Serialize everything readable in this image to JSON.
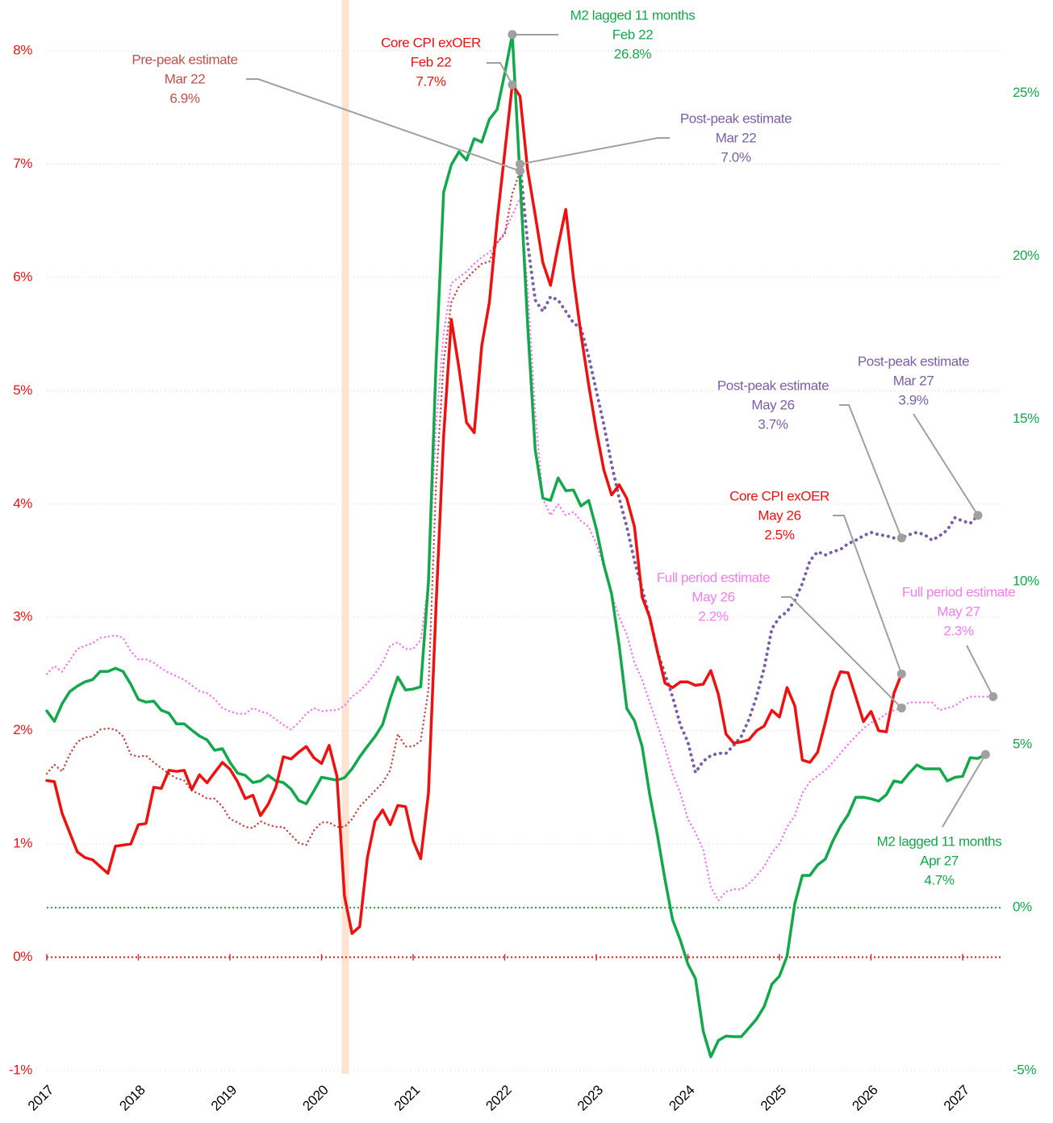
{
  "chart_data": {
    "type": "line",
    "x": [
      2017,
      2017.083,
      2017.167,
      2017.25,
      2017.333,
      2017.417,
      2017.5,
      2017.583,
      2017.667,
      2017.75,
      2017.833,
      2017.917,
      2018,
      2018.083,
      2018.167,
      2018.25,
      2018.333,
      2018.417,
      2018.5,
      2018.583,
      2018.667,
      2018.75,
      2018.833,
      2018.917,
      2019,
      2019.083,
      2019.167,
      2019.25,
      2019.333,
      2019.417,
      2019.5,
      2019.583,
      2019.667,
      2019.75,
      2019.833,
      2019.917,
      2020,
      2020.083,
      2020.167,
      2020.25,
      2020.333,
      2020.417,
      2020.5,
      2020.583,
      2020.667,
      2020.75,
      2020.833,
      2020.917,
      2021,
      2021.083,
      2021.167,
      2021.25,
      2021.333,
      2021.417,
      2021.5,
      2021.583,
      2021.667,
      2021.75,
      2021.833,
      2021.917,
      2022,
      2022.083,
      2022.167,
      2022.25,
      2022.333,
      2022.417,
      2022.5,
      2022.583,
      2022.667,
      2022.75,
      2022.833,
      2022.917,
      2023,
      2023.083,
      2023.167,
      2023.25,
      2023.333,
      2023.417,
      2023.5,
      2023.583,
      2023.667,
      2023.75,
      2023.833,
      2023.917,
      2024,
      2024.083,
      2024.167,
      2024.25,
      2024.333,
      2024.417,
      2024.5,
      2024.583,
      2024.667,
      2024.75,
      2024.833,
      2024.917,
      2025,
      2025.083,
      2025.167,
      2025.25,
      2025.333,
      2025.417,
      2025.5,
      2025.583,
      2025.667,
      2025.75,
      2025.833,
      2025.917,
      2026,
      2026.083,
      2026.167,
      2026.25,
      2026.333,
      2026.417,
      2026.5,
      2026.583,
      2026.667,
      2026.75,
      2026.833,
      2026.917,
      2027,
      2027.083,
      2027.167,
      2027.25,
      2027.333
    ],
    "series": [
      {
        "name": "Core CPI exOER",
        "color": "#ee1111",
        "style": "solid",
        "axis": "y",
        "values": [
          1.56,
          1.55,
          1.27,
          1.1,
          0.93,
          0.88,
          0.86,
          0.8,
          0.74,
          0.98,
          0.99,
          1.0,
          1.17,
          1.18,
          1.5,
          1.49,
          1.65,
          1.64,
          1.65,
          1.48,
          1.61,
          1.54,
          1.63,
          1.72,
          1.66,
          1.55,
          1.4,
          1.43,
          1.25,
          1.35,
          1.5,
          1.77,
          1.75,
          1.81,
          1.86,
          1.76,
          1.71,
          1.87,
          1.6,
          0.54,
          0.21,
          0.27,
          0.88,
          1.2,
          1.3,
          1.17,
          1.34,
          1.33,
          1.03,
          0.87,
          1.45,
          3.1,
          4.6,
          5.63,
          5.2,
          4.72,
          4.63,
          5.4,
          5.78,
          6.5,
          7.1,
          7.7,
          7.6,
          6.95,
          6.55,
          6.13,
          5.93,
          6.28,
          6.6,
          6.0,
          5.5,
          5.05,
          4.65,
          4.3,
          4.08,
          4.17,
          4.05,
          3.8,
          3.18,
          3.0,
          2.7,
          2.42,
          2.38,
          2.43,
          2.43,
          2.4,
          2.41,
          2.53,
          2.32,
          1.97,
          1.89,
          1.9,
          1.92,
          2.0,
          2.04,
          2.18,
          2.12,
          2.38,
          2.22,
          1.74,
          1.72,
          1.81,
          2.07,
          2.35,
          2.52,
          2.51,
          2.3,
          2.08,
          2.17,
          2.0,
          1.99,
          2.33,
          2.5,
          null,
          null,
          null,
          null,
          null,
          null,
          null,
          null,
          null,
          null,
          null,
          null
        ],
        "annotations": [
          {
            "date": "Feb 22",
            "label": "7.7%"
          },
          {
            "date": "May 26",
            "label": "2.5%"
          }
        ]
      },
      {
        "name": "M2 lagged 11 months",
        "color": "#12a84b",
        "style": "solid",
        "axis": "y2",
        "values": [
          6.04,
          5.72,
          6.26,
          6.63,
          6.8,
          6.93,
          7.0,
          7.25,
          7.25,
          7.35,
          7.25,
          6.86,
          6.39,
          6.31,
          6.34,
          6.06,
          5.97,
          5.64,
          5.64,
          5.45,
          5.27,
          5.15,
          4.83,
          4.88,
          4.46,
          4.13,
          4.06,
          3.84,
          3.89,
          4.06,
          3.89,
          3.84,
          3.64,
          3.29,
          3.19,
          3.59,
          4.0,
          3.96,
          3.91,
          3.99,
          4.26,
          4.63,
          4.95,
          5.25,
          5.62,
          6.41,
          7.08,
          6.68,
          6.71,
          6.78,
          10.0,
          16.7,
          21.96,
          22.8,
          23.2,
          22.95,
          23.6,
          23.5,
          24.2,
          24.5,
          25.6,
          26.8,
          22.4,
          17.9,
          14.06,
          12.57,
          12.5,
          13.19,
          12.8,
          12.82,
          12.33,
          12.5,
          11.63,
          10.52,
          9.63,
          8.04,
          6.11,
          5.74,
          4.95,
          3.47,
          2.23,
          0.87,
          -0.37,
          -0.99,
          -1.73,
          -2.18,
          -3.79,
          -4.58,
          -4.08,
          -3.94,
          -3.96,
          -3.96,
          -3.69,
          -3.42,
          -3.04,
          -2.35,
          -2.1,
          -1.49,
          0.12,
          0.99,
          0.99,
          1.31,
          1.49,
          2.05,
          2.5,
          2.85,
          3.39,
          3.39,
          3.34,
          3.27,
          3.47,
          3.89,
          3.84,
          4.13,
          4.38,
          4.26,
          4.26,
          4.26,
          3.89,
          4.0,
          4.03,
          4.6,
          4.58,
          4.7,
          null
        ],
        "annotations": [
          {
            "date": "Feb 22",
            "label": "26.8%"
          },
          {
            "date": "Apr 27",
            "label": "4.7%"
          }
        ]
      },
      {
        "name": "Pre-peak estimate",
        "color": "#c0504d",
        "style": "dotted",
        "axis": "y",
        "values": [
          1.62,
          1.7,
          1.64,
          1.79,
          1.9,
          1.94,
          1.95,
          2.01,
          2.02,
          2.01,
          1.95,
          1.79,
          1.77,
          1.78,
          1.72,
          1.67,
          1.62,
          1.58,
          1.56,
          1.47,
          1.44,
          1.4,
          1.4,
          1.33,
          1.22,
          1.19,
          1.15,
          1.14,
          1.2,
          1.17,
          1.15,
          1.15,
          1.08,
          1.01,
          0.99,
          1.12,
          1.19,
          1.19,
          1.15,
          1.15,
          1.22,
          1.33,
          1.4,
          1.47,
          1.54,
          1.65,
          1.97,
          1.86,
          1.86,
          1.91,
          2.36,
          4.18,
          5.25,
          5.78,
          5.92,
          5.99,
          6.06,
          6.12,
          6.14,
          6.31,
          6.38,
          6.74,
          6.94,
          null,
          null,
          null,
          null,
          null,
          null,
          null,
          null,
          null,
          null,
          null,
          null,
          null,
          null,
          null,
          null,
          null,
          null,
          null,
          null,
          null,
          null,
          null,
          null,
          null,
          null,
          null,
          null,
          null,
          null,
          null,
          null,
          null,
          null,
          null,
          null,
          null,
          null,
          null,
          null,
          null,
          null,
          null,
          null,
          null,
          null,
          null,
          null,
          null,
          null,
          null,
          null,
          null,
          null,
          null,
          null,
          null,
          null,
          null,
          null,
          null,
          null
        ],
        "annotations": [
          {
            "date": "Mar 22",
            "label": "6.9%"
          }
        ]
      },
      {
        "name": "Post-peak estimate",
        "color": "#7a5fa8",
        "style": "dotted",
        "axis": "y",
        "values": [
          null,
          null,
          null,
          null,
          null,
          null,
          null,
          null,
          null,
          null,
          null,
          null,
          null,
          null,
          null,
          null,
          null,
          null,
          null,
          null,
          null,
          null,
          null,
          null,
          null,
          null,
          null,
          null,
          null,
          null,
          null,
          null,
          null,
          null,
          null,
          null,
          null,
          null,
          null,
          null,
          null,
          null,
          null,
          null,
          null,
          null,
          null,
          null,
          null,
          null,
          null,
          null,
          null,
          null,
          null,
          null,
          null,
          null,
          null,
          null,
          null,
          null,
          7.0,
          6.3,
          5.8,
          5.7,
          5.83,
          5.8,
          5.7,
          5.6,
          5.55,
          5.3,
          5.0,
          4.7,
          4.35,
          4.05,
          3.8,
          3.5,
          3.25,
          3.0,
          2.7,
          2.5,
          2.3,
          2.05,
          1.9,
          1.63,
          1.73,
          1.78,
          1.8,
          1.8,
          1.87,
          1.95,
          2.1,
          2.3,
          2.55,
          2.9,
          3.0,
          3.05,
          3.15,
          3.3,
          3.5,
          3.58,
          3.55,
          3.58,
          3.6,
          3.65,
          3.68,
          3.72,
          3.75,
          3.73,
          3.72,
          3.7,
          3.7,
          3.73,
          3.75,
          3.73,
          3.68,
          3.72,
          3.77,
          3.88,
          3.85,
          3.83,
          3.9,
          null,
          null
        ],
        "annotations": [
          {
            "date": "Mar 22",
            "label": "7.0%"
          },
          {
            "date": "May 26",
            "label": "3.7%"
          },
          {
            "date": "Mar 27",
            "label": "3.9%"
          }
        ]
      },
      {
        "name": "Full period estimate",
        "color": "#f27ef0",
        "style": "dotted",
        "axis": "y",
        "values": [
          2.5,
          2.57,
          2.52,
          2.62,
          2.72,
          2.75,
          2.77,
          2.82,
          2.83,
          2.84,
          2.82,
          2.7,
          2.63,
          2.63,
          2.6,
          2.55,
          2.51,
          2.48,
          2.45,
          2.4,
          2.35,
          2.33,
          2.28,
          2.2,
          2.17,
          2.15,
          2.15,
          2.2,
          2.17,
          2.15,
          2.1,
          2.05,
          2.01,
          2.07,
          2.15,
          2.2,
          2.17,
          2.18,
          2.18,
          2.22,
          2.3,
          2.35,
          2.42,
          2.5,
          2.6,
          2.75,
          2.78,
          2.72,
          2.72,
          2.8,
          3.3,
          4.7,
          5.5,
          5.95,
          6.0,
          6.05,
          6.12,
          6.18,
          6.22,
          6.3,
          6.4,
          6.55,
          6.7,
          5.9,
          4.8,
          4.05,
          3.9,
          4.0,
          3.9,
          3.93,
          3.85,
          3.8,
          3.65,
          3.45,
          3.2,
          3.0,
          2.85,
          2.6,
          2.45,
          2.25,
          2.05,
          1.85,
          1.62,
          1.45,
          1.22,
          1.1,
          0.95,
          0.62,
          0.5,
          0.58,
          0.6,
          0.6,
          0.65,
          0.72,
          0.8,
          0.92,
          1.0,
          1.15,
          1.25,
          1.45,
          1.55,
          1.6,
          1.65,
          1.72,
          1.8,
          1.88,
          1.95,
          2.02,
          2.07,
          2.1,
          2.15,
          2.18,
          2.2,
          2.25,
          2.25,
          2.25,
          2.25,
          2.18,
          2.2,
          2.22,
          2.27,
          2.3,
          2.3,
          2.3,
          2.3
        ],
        "annotations": [
          {
            "date": "May 26",
            "label": "2.2%"
          },
          {
            "date": "May 27",
            "label": "2.3%"
          }
        ]
      }
    ],
    "xlim": [
      2017,
      2027.5
    ],
    "xticks": [
      2017,
      2018,
      2019,
      2020,
      2021,
      2022,
      2023,
      2024,
      2025,
      2026,
      2027
    ],
    "ylim": [
      -1,
      8
    ],
    "yticks": [
      {
        "value": -1,
        "label": "-1%"
      },
      {
        "value": 0,
        "label": "0%"
      },
      {
        "value": 1,
        "label": "1%"
      },
      {
        "value": 2,
        "label": "2%"
      },
      {
        "value": 3,
        "label": "3%"
      },
      {
        "value": 4,
        "label": "4%"
      },
      {
        "value": 5,
        "label": "5%"
      },
      {
        "value": 6,
        "label": "6%"
      },
      {
        "value": 7,
        "label": "7%"
      },
      {
        "value": 8,
        "label": "8%"
      }
    ],
    "y2lim": [
      -5,
      26.3
    ],
    "y2ticks": [
      {
        "value": -5,
        "label": "-5%"
      },
      {
        "value": 0,
        "label": "0%"
      },
      {
        "value": 5,
        "label": "5%"
      },
      {
        "value": 10,
        "label": "10%"
      },
      {
        "value": 15,
        "label": "15%"
      },
      {
        "value": 20,
        "label": "20%"
      },
      {
        "value": 25,
        "label": "25%"
      }
    ],
    "y_color": "#ee1111",
    "y2_color": "#12a84b",
    "grid": true,
    "shade": {
      "x": [
        2020.22,
        2020.3
      ],
      "color": "#fde4d2"
    }
  }
}
